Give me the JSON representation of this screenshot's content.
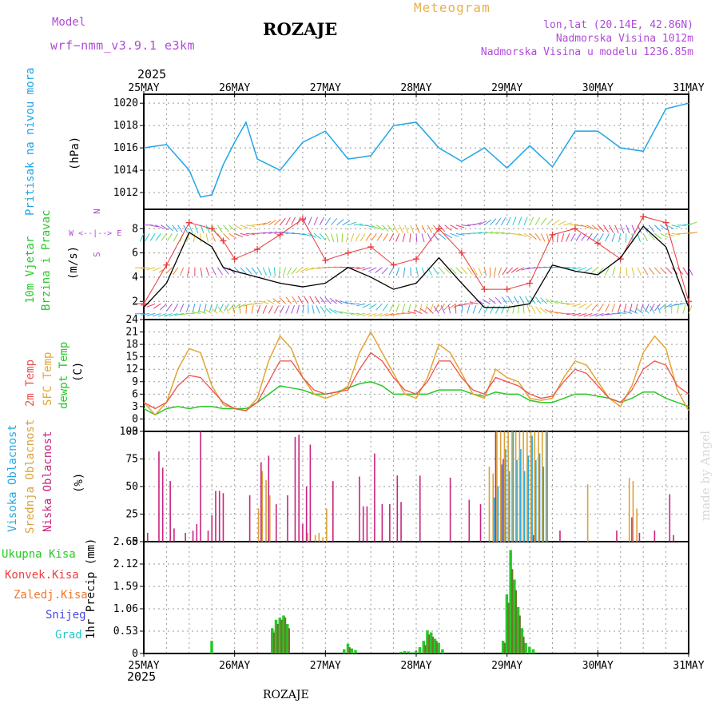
{
  "header": {
    "model_label": "Model",
    "model_value": "wrf−nmm_v3.9.1  e3km",
    "station": "ROZAJE",
    "title": "Meteogram",
    "lonlat": "lon,lat (20.14E, 42.86N)",
    "altitude": "Nadmorska Visina 1012m",
    "model_altitude": "Nadmorska Visina u modelu 1236.85m"
  },
  "footer": {
    "station": "ROZAJE",
    "watermark": "made by Angel"
  },
  "xaxis": {
    "year": "2025",
    "days": [
      "25MAY",
      "26MAY",
      "27MAY",
      "28MAY",
      "29MAY",
      "30MAY",
      "31MAY"
    ]
  },
  "colors": {
    "pressure": "#1ea5e8",
    "wind_speed": "#000000",
    "gust": "#e8383b",
    "temp2m": "#f0504a",
    "sfc": "#e3a535",
    "dew": "#28c828",
    "low": "#c8247c",
    "mid": "#d8a23a",
    "high": "#28a8e0",
    "total": "#28c828",
    "conv": "#f04040",
    "frozen": "#f07830",
    "snow": "#4848e0",
    "hail": "#28c8c8",
    "title": "#e8b050",
    "purple": "#b04ad8"
  },
  "chart_data": [
    {
      "type": "line",
      "id": "pressure",
      "title": "Pritisak na nivou mora",
      "ylabel": "(hPa)",
      "ylim": [
        1010.5,
        1020.8
      ],
      "yticks": [
        1012,
        1014,
        1016,
        1018,
        1020
      ],
      "x_hours": [
        0,
        6,
        12,
        15,
        18,
        21,
        24,
        27,
        30,
        36,
        42,
        48,
        54,
        60,
        66,
        72,
        78,
        84,
        90,
        96,
        102,
        108,
        114,
        120,
        126,
        132,
        138,
        144
      ],
      "series": [
        {
          "name": "MSLP",
          "values": [
            1016,
            1016.3,
            1014,
            1011.6,
            1011.8,
            1014.5,
            1016.5,
            1018.3,
            1015,
            1014,
            1016.5,
            1017.5,
            1015,
            1015.3,
            1018,
            1018.3,
            1016,
            1014.8,
            1016,
            1014.2,
            1016.2,
            1014.3,
            1017.5,
            1017.5,
            1016,
            1015.7,
            1019.5,
            1020
          ]
        }
      ]
    },
    {
      "type": "line",
      "id": "wind",
      "title": "10m Vjetar Brzina i Pravac",
      "ylabel": "(m/s)",
      "compass": "W <--|--> E",
      "ylim": [
        0.5,
        9.6
      ],
      "yticks": [
        2,
        4,
        6,
        8
      ],
      "x_hours": [
        0,
        6,
        12,
        18,
        21,
        24,
        30,
        36,
        42,
        48,
        54,
        60,
        66,
        72,
        78,
        84,
        90,
        96,
        102,
        108,
        114,
        120,
        126,
        132,
        138,
        144
      ],
      "series": [
        {
          "name": "speed",
          "values": [
            1.5,
            3.5,
            7.7,
            6.5,
            4.8,
            4.5,
            4,
            3.5,
            3.2,
            3.5,
            4.8,
            4,
            3,
            3.5,
            5.6,
            3.5,
            1.5,
            1.5,
            1.8,
            5,
            4.5,
            4.2,
            5.6,
            8.2,
            6.5,
            1.5
          ]
        },
        {
          "name": "gust",
          "values": [
            1.8,
            5,
            8.5,
            8,
            7,
            5.5,
            6.3,
            7.5,
            8.8,
            5.4,
            6,
            6.5,
            5,
            5.5,
            8,
            6,
            3,
            3,
            3.5,
            7.5,
            8,
            6.8,
            5.5,
            9,
            8.5,
            2
          ]
        }
      ]
    },
    {
      "type": "line",
      "id": "temperature",
      "title": "2m Temp / SFC Temp / dewpt Temp",
      "ylabel": "(C)",
      "ylim": [
        -3,
        24
      ],
      "yticks": [
        -3,
        0,
        3,
        6,
        9,
        12,
        15,
        18,
        21,
        24
      ],
      "x_hours": [
        0,
        3,
        6,
        9,
        12,
        15,
        18,
        21,
        24,
        27,
        30,
        33,
        36,
        39,
        42,
        45,
        48,
        51,
        54,
        57,
        60,
        63,
        66,
        69,
        72,
        75,
        78,
        81,
        84,
        87,
        90,
        93,
        96,
        99,
        102,
        105,
        108,
        111,
        114,
        117,
        120,
        123,
        126,
        129,
        132,
        135,
        138,
        141,
        144
      ],
      "series": [
        {
          "name": "2m Temp",
          "values": [
            4,
            2.5,
            4,
            8,
            10.5,
            10,
            7,
            4,
            2.5,
            2,
            4,
            9,
            14,
            14,
            10,
            7,
            6,
            6.5,
            7,
            12,
            16,
            14,
            10,
            7,
            6,
            9,
            14,
            14,
            10,
            7,
            6,
            10,
            9,
            8,
            6,
            5,
            5.5,
            9,
            12,
            11,
            8,
            5,
            4,
            7,
            12,
            14,
            13,
            8,
            6
          ]
        },
        {
          "name": "SFC Temp",
          "values": [
            4,
            1,
            4,
            12,
            17,
            16,
            8,
            3.5,
            2.5,
            2,
            5,
            14,
            20,
            17,
            10,
            6,
            5,
            6,
            8,
            16,
            21,
            16,
            11,
            6,
            5,
            10,
            18,
            16,
            11,
            6,
            5,
            12,
            10,
            9,
            5,
            4.5,
            5,
            10,
            14,
            13,
            9,
            5,
            3,
            8,
            16,
            20,
            17,
            7,
            2
          ]
        },
        {
          "name": "dewpt Temp",
          "values": [
            2.5,
            1,
            2.5,
            3,
            2.5,
            3,
            3,
            2.5,
            2.5,
            2.5,
            4,
            6,
            8,
            7.5,
            7,
            6,
            6,
            6.5,
            7.5,
            8.5,
            9,
            8,
            6,
            6,
            6,
            6,
            7,
            7,
            7,
            6,
            5.5,
            6.5,
            6,
            6,
            4.5,
            4,
            4,
            5,
            6,
            6,
            5.5,
            5,
            4,
            5,
            6.5,
            6.5,
            5,
            4,
            3
          ]
        }
      ]
    },
    {
      "type": "bar",
      "id": "clouds",
      "title": "Visoka Oblacnost / Srednja Oblacnost / Niska Oblacnost",
      "ylabel": "(%)",
      "ylim": [
        0,
        100
      ],
      "yticks": [
        0,
        25,
        50,
        75,
        100
      ],
      "series": [
        {
          "name": "Niska",
          "hours": [
            1,
            4,
            5,
            7,
            8,
            11,
            13,
            14,
            15,
            17,
            18,
            19,
            20,
            21,
            28,
            31,
            33,
            35,
            38,
            40,
            41,
            42,
            43,
            44,
            50,
            57,
            58,
            59,
            61,
            63,
            65,
            67,
            68,
            73,
            81,
            86,
            89,
            93,
            95,
            103,
            110,
            125,
            129,
            131,
            135,
            139,
            140
          ],
          "values": [
            8,
            82,
            67,
            55,
            12,
            8,
            10,
            16,
            100,
            10,
            24,
            46,
            46,
            44,
            42,
            72,
            78,
            34,
            42,
            95,
            97,
            16,
            50,
            88,
            55,
            59,
            32,
            32,
            80,
            34,
            34,
            60,
            36,
            60,
            58,
            38,
            34,
            100,
            75,
            6,
            10,
            10,
            22,
            8,
            10,
            43,
            6
          ]
        },
        {
          "name": "Srednja",
          "hours": [
            30,
            31,
            32,
            33,
            43,
            45,
            46,
            47,
            48,
            91,
            92,
            93,
            94,
            95,
            96,
            97,
            98,
            99,
            100,
            101,
            102,
            103,
            104,
            105,
            106,
            117,
            128,
            129,
            130
          ],
          "values": [
            30,
            64,
            56,
            42,
            8,
            6,
            8,
            4,
            30,
            68,
            62,
            100,
            100,
            100,
            100,
            100,
            100,
            100,
            100,
            100,
            100,
            100,
            100,
            100,
            100,
            52,
            58,
            55,
            30
          ]
        },
        {
          "name": "Visoka",
          "hours": [
            92,
            93,
            94,
            95,
            96,
            97,
            98,
            99,
            100,
            101,
            102,
            103,
            104,
            105,
            106
          ],
          "values": [
            40,
            50,
            70,
            84,
            64,
            100,
            74,
            84,
            64,
            78,
            96,
            74,
            80,
            68,
            100
          ]
        }
      ]
    },
    {
      "type": "bar",
      "id": "precip",
      "title": "1hr Precip",
      "ylabel": "(mm)",
      "ylim": [
        0,
        2.65
      ],
      "yticks": [
        0,
        0.53,
        1.06,
        1.59,
        2.12,
        2.65
      ],
      "legend": [
        "Ukupna Kisa",
        "Konvek.Kisa",
        "Zaledj.Kisa",
        "Snijeg",
        "Grad"
      ],
      "series": [
        {
          "name": "Ukupna Kisa",
          "hours": [
            18,
            34,
            35,
            36,
            37,
            38,
            53,
            54,
            55,
            56,
            68,
            69,
            70,
            71,
            72,
            73,
            74,
            75,
            76,
            77,
            78,
            79,
            95,
            96,
            97,
            98,
            99,
            100,
            101,
            102,
            103
          ],
          "values": [
            0.3,
            0.6,
            0.8,
            0.85,
            0.9,
            0.7,
            0.1,
            0.23,
            0.12,
            0.08,
            0.04,
            0.06,
            0.05,
            0.03,
            0.05,
            0.15,
            0.3,
            0.55,
            0.5,
            0.35,
            0.25,
            0.1,
            0.3,
            1.4,
            2.45,
            1.75,
            1.1,
            0.6,
            0.25,
            0.16,
            0.1
          ]
        },
        {
          "name": "Konvek.Kisa",
          "hours": [
            34,
            35,
            36,
            37,
            38,
            54,
            74,
            75,
            76,
            77,
            95,
            96,
            97,
            98,
            99,
            100
          ],
          "values": [
            0.5,
            0.7,
            0.8,
            0.85,
            0.6,
            0.15,
            0.2,
            0.45,
            0.4,
            0.3,
            0.25,
            1.2,
            2.0,
            1.5,
            0.9,
            0.4
          ]
        }
      ]
    }
  ],
  "labels": {
    "pressure_title": "Pritisak na nivou mora",
    "pressure_unit": "(hPa)",
    "wind_title_1": "10m Vjetar",
    "wind_title_2": "Brzina i Pravac",
    "wind_unit": "(m/s)",
    "compass_n": "N",
    "compass_s": "S",
    "compass_we": "W <--|--> E",
    "temp_2m": "2m Temp",
    "temp_sfc": "SFC Temp",
    "temp_dew": "dewpt Temp",
    "temp_unit": "(C)",
    "cloud_high": "Visoka Oblacnost",
    "cloud_mid": "Srednja Oblacnost",
    "cloud_low": "Niska Oblacnost",
    "cloud_unit": "(%)",
    "precip_unit": "1hr Precip (mm)",
    "legend_total": "Ukupna Kisa",
    "legend_conv": "Konvek.Kisa",
    "legend_frozen": "Zaledj.Kisa",
    "legend_snow": "Snijeg",
    "legend_hail": "Grad"
  }
}
